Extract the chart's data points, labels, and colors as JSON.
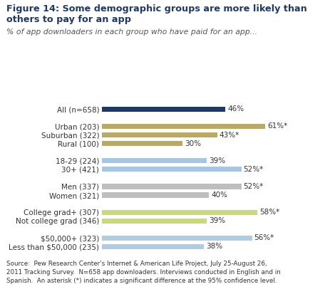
{
  "title_line1": "Figure 14: Some demographic groups are more likely than",
  "title_line2": "others to pay for an app",
  "subtitle": "% of app downloaders in each group who have paid for an app...",
  "source_text": "Source:  Pew Research Center's Internet & American Life Project, July 25-August 26,\n2011 Tracking Survey.  N=658 app downloaders. Interviews conducted in English and in\nSpanish.  An asterisk (*) indicates a significant difference at the 95% confidence level.",
  "categories": [
    "All (n=658)",
    "Urban (203)",
    "Suburban (322)",
    "Rural (100)",
    "18-29 (224)",
    "30+ (421)",
    "Men (337)",
    "Women (321)",
    "College grad+ (307)",
    "Not college grad (346)",
    "$50,000+ (323)",
    "Less than $50,000 (235)"
  ],
  "values": [
    46,
    61,
    43,
    30,
    39,
    52,
    52,
    40,
    58,
    39,
    56,
    38
  ],
  "labels": [
    "46%",
    "61%*",
    "43%*",
    "30%",
    "39%",
    "52%*",
    "52%*",
    "40%",
    "58%*",
    "39%",
    "56%*",
    "38%"
  ],
  "colors": [
    "#1f3864",
    "#b8a96a",
    "#b8a96a",
    "#b8a96a",
    "#aac4e4",
    "#aac4e4",
    "#bebebe",
    "#bebebe",
    "#c8d87a",
    "#c8d87a",
    "#b0cce0",
    "#b0cce0"
  ],
  "xlim": [
    0,
    72
  ],
  "bar_height": 0.6,
  "figsize": [
    4.7,
    4.2
  ],
  "dpi": 100,
  "title_color": "#1f3864",
  "subtitle_color": "#555555",
  "label_color": "#333333",
  "source_color": "#333333",
  "background_color": "#ffffff"
}
